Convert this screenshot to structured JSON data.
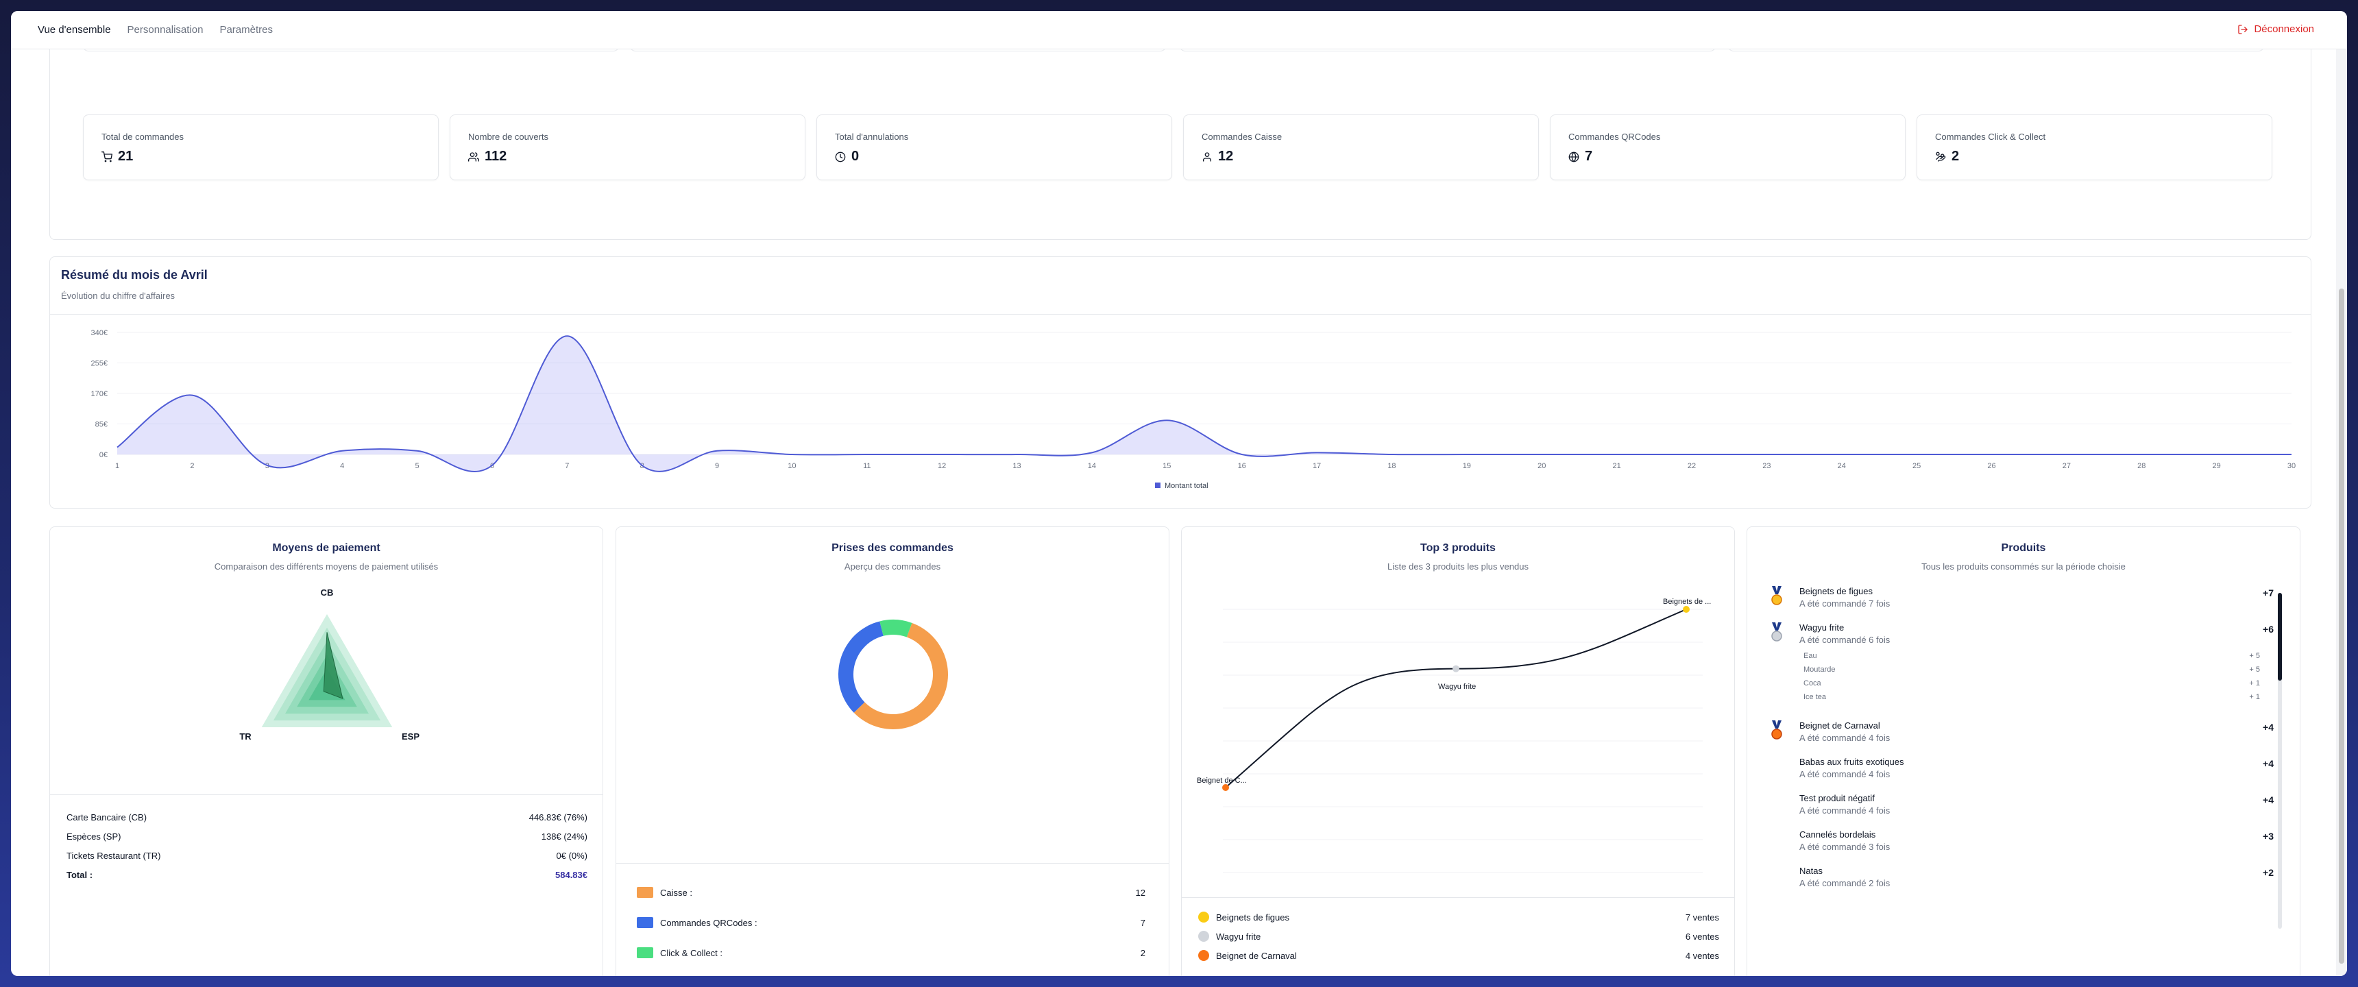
{
  "nav": {
    "tabs": [
      {
        "label": "Vue d'ensemble"
      },
      {
        "label": "Personnalisation"
      },
      {
        "label": "Paramètres"
      }
    ],
    "logout_label": "Déconnexion"
  },
  "stats": [
    {
      "label": "Total de commandes",
      "value": "21",
      "icon": "cart-icon"
    },
    {
      "label": "Nombre de couverts",
      "value": "112",
      "icon": "users-icon"
    },
    {
      "label": "Total d'annulations",
      "value": "0",
      "icon": "clock-icon"
    },
    {
      "label": "Commandes Caisse",
      "value": "12",
      "icon": "user-icon"
    },
    {
      "label": "Commandes QRCodes",
      "value": "7",
      "icon": "globe-icon"
    },
    {
      "label": "Commandes Click & Collect",
      "value": "2",
      "icon": "hand-coins-icon"
    }
  ],
  "month": {
    "title": "Résumé du mois de Avril",
    "subtitle": "Évolution du chiffre d'affaires"
  },
  "chart_data": {
    "type": "area",
    "x": [
      1,
      2,
      3,
      4,
      5,
      6,
      7,
      8,
      9,
      10,
      11,
      12,
      13,
      14,
      15,
      16,
      17,
      18,
      19,
      20,
      21,
      22,
      23,
      24,
      25,
      26,
      27,
      28,
      29,
      30
    ],
    "series": [
      {
        "name": "Montant total",
        "values": [
          20,
          165,
          0,
          10,
          10,
          0,
          330,
          0,
          10,
          0,
          0,
          0,
          0,
          5,
          95,
          0,
          5,
          0,
          0,
          0,
          0,
          0,
          0,
          0,
          0,
          0,
          0,
          0,
          0,
          0
        ]
      }
    ],
    "y_ticks": [
      "340€",
      "255€",
      "170€",
      "85€",
      "0€"
    ],
    "ylim": [
      0,
      340
    ],
    "legend_position": "bottom",
    "color": "#4f5bd5"
  },
  "payment": {
    "title": "Moyens de paiement",
    "subtitle": "Comparaison des différents moyens de paiement utilisés",
    "radar_labels": {
      "top": "CB",
      "left": "TR",
      "right": "ESP"
    },
    "rows": [
      {
        "label": "Carte Bancaire (CB)",
        "value": "446.83€ (76%)"
      },
      {
        "label": "Espèces (SP)",
        "value": "138€ (24%)"
      },
      {
        "label": "Tickets Restaurant (TR)",
        "value": "0€ (0%)"
      }
    ],
    "total_label": "Total :",
    "total_value": "584.83€",
    "shares": {
      "cb": 0.76,
      "esp": 0.24,
      "tr": 0
    }
  },
  "orders": {
    "title": "Prises des commandes",
    "subtitle": "Aperçu des commandes",
    "items": [
      {
        "label": "Caisse :",
        "value": "12",
        "color": "#f59e4c",
        "n": 12
      },
      {
        "label": "Commandes QRCodes :",
        "value": "7",
        "color": "#3b6de6",
        "n": 7
      },
      {
        "label": "Click & Collect :",
        "value": "2",
        "color": "#4ade80",
        "n": 2
      }
    ]
  },
  "top3": {
    "title": "Top 3 produits",
    "subtitle": "Liste des 3 produits les plus vendus",
    "point_labels": [
      "Beignet de C...",
      "Wagyu frite",
      "Beignets de ..."
    ],
    "items": [
      {
        "label": "Beignets de figues",
        "value": "7 ventes",
        "color": "#facc15",
        "n": 7
      },
      {
        "label": "Wagyu frite",
        "value": "6 ventes",
        "color": "#d1d5db",
        "n": 6
      },
      {
        "label": "Beignet de Carnaval",
        "value": "4 ventes",
        "color": "#f97316",
        "n": 4
      }
    ]
  },
  "products": {
    "title": "Produits",
    "subtitle": "Tous les produits consommés sur la période choisie",
    "items": [
      {
        "name": "Beignets de figues",
        "sub": "A été commandé 7 fois",
        "qty": "+7",
        "medal": "gold"
      },
      {
        "name": "Wagyu frite",
        "sub": "A été commandé 6 fois",
        "qty": "+6",
        "medal": "silver",
        "extras": [
          {
            "name": "Eau",
            "qty": "+ 5"
          },
          {
            "name": "Moutarde",
            "qty": "+ 5"
          },
          {
            "name": "Coca",
            "qty": "+ 1"
          },
          {
            "name": "Ice tea",
            "qty": "+ 1"
          }
        ]
      },
      {
        "name": "Beignet de Carnaval",
        "sub": "A été commandé 4 fois",
        "qty": "+4",
        "medal": "bronze"
      },
      {
        "name": "Babas aux fruits exotiques",
        "sub": "A été commandé 4 fois",
        "qty": "+4"
      },
      {
        "name": "Test produit négatif",
        "sub": "A été commandé 4 fois",
        "qty": "+4"
      },
      {
        "name": "Cannelés bordelais",
        "sub": "A été commandé 3 fois",
        "qty": "+3"
      },
      {
        "name": "Natas",
        "sub": "A été commandé 2 fois",
        "qty": "+2"
      }
    ]
  }
}
